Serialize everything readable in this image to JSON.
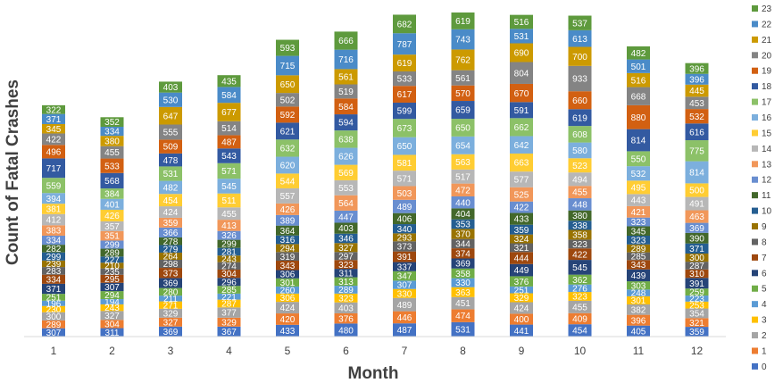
{
  "chart_data": {
    "type": "bar",
    "stacked": true,
    "title": "",
    "xlabel": "Month",
    "ylabel": "Count of Fatal Crashes",
    "categories": [
      "1",
      "2",
      "3",
      "4",
      "5",
      "6",
      "7",
      "8",
      "9",
      "10",
      "11",
      "12"
    ],
    "legend_position": "right",
    "series": [
      {
        "name": "0",
        "color": "#4472C4",
        "values": [
          307,
          311,
          369,
          367,
          433,
          480,
          487,
          531,
          441,
          454,
          405,
          359
        ]
      },
      {
        "name": "1",
        "color": "#ED7D31",
        "values": [
          289,
          304,
          327,
          329,
          420,
          376,
          446,
          474,
          400,
          409,
          396,
          321
        ]
      },
      {
        "name": "2",
        "color": "#A5A5A5",
        "values": [
          300,
          327,
          329,
          377,
          424,
          403,
          489,
          451,
          424,
          455,
          382,
          354
        ]
      },
      {
        "name": "3",
        "color": "#FFC000",
        "values": [
          230,
          243,
          271,
          287,
          306,
          323,
          330,
          363,
          329,
          323,
          301,
          253
        ]
      },
      {
        "name": "4",
        "color": "#5B9BD5",
        "values": [
          196,
          194,
          211,
          221,
          260,
          289,
          307,
          330,
          251,
          276,
          248,
          223
        ]
      },
      {
        "name": "5",
        "color": "#70AD47",
        "values": [
          251,
          294,
          280,
          285,
          301,
          313,
          347,
          358,
          376,
          362,
          303,
          259
        ]
      },
      {
        "name": "6",
        "color": "#264478",
        "values": [
          371,
          307,
          369,
          296,
          306,
          311,
          337,
          369,
          449,
          545,
          439,
          391
        ]
      },
      {
        "name": "7",
        "color": "#9E480E",
        "values": [
          334,
          295,
          373,
          304,
          343,
          323,
          391,
          374,
          444,
          422,
          343,
          310
        ]
      },
      {
        "name": "8",
        "color": "#636363",
        "values": [
          283,
          235,
          298,
          274,
          319,
          297,
          373,
          344,
          321,
          323,
          285,
          287
        ]
      },
      {
        "name": "9",
        "color": "#997300",
        "values": [
          239,
          210,
          264,
          243,
          294,
          327,
          293,
          370,
          324,
          358,
          289,
          300
        ]
      },
      {
        "name": "10",
        "color": "#255E91",
        "values": [
          299,
          227,
          279,
          281,
          316,
          346,
          340,
          353,
          359,
          338,
          323,
          371
        ]
      },
      {
        "name": "11",
        "color": "#43682B",
        "values": [
          282,
          289,
          278,
          299,
          364,
          403,
          406,
          404,
          433,
          380,
          345,
          390
        ]
      },
      {
        "name": "12",
        "color": "#698ED0",
        "values": [
          334,
          299,
          366,
          326,
          389,
          447,
          489,
          440,
          422,
          448,
          323,
          369
        ]
      },
      {
        "name": "13",
        "color": "#F1975A",
        "values": [
          383,
          351,
          359,
          413,
          426,
          564,
          503,
          472,
          525,
          455,
          421,
          463
        ]
      },
      {
        "name": "14",
        "color": "#B7B7B7",
        "values": [
          412,
          357,
          424,
          455,
          557,
          553,
          571,
          517,
          577,
          494,
          443,
          491
        ]
      },
      {
        "name": "15",
        "color": "#FFCD33",
        "values": [
          381,
          426,
          454,
          511,
          544,
          569,
          581,
          563,
          663,
          523,
          495,
          500
        ]
      },
      {
        "name": "16",
        "color": "#7CAFDD",
        "values": [
          394,
          401,
          482,
          545,
          620,
          626,
          650,
          654,
          642,
          580,
          532,
          814
        ]
      },
      {
        "name": "17",
        "color": "#8CC168",
        "values": [
          559,
          384,
          531,
          571,
          632,
          638,
          673,
          650,
          662,
          608,
          550,
          775
        ]
      },
      {
        "name": "18",
        "color": "#335AA1",
        "values": [
          717,
          568,
          478,
          543,
          621,
          594,
          599,
          659,
          591,
          619,
          814,
          616
        ]
      },
      {
        "name": "19",
        "color": "#D26012",
        "values": [
          496,
          533,
          509,
          487,
          592,
          584,
          617,
          570,
          670,
          660,
          880,
          532
        ]
      },
      {
        "name": "20",
        "color": "#848484",
        "values": [
          422,
          455,
          555,
          514,
          502,
          519,
          533,
          561,
          804,
          933,
          668,
          453
        ]
      },
      {
        "name": "21",
        "color": "#CC9A00",
        "values": [
          345,
          380,
          647,
          677,
          650,
          561,
          619,
          762,
          690,
          700,
          516,
          445
        ]
      },
      {
        "name": "22",
        "color": "#4A8BC8",
        "values": [
          371,
          334,
          530,
          584,
          715,
          716,
          787,
          743,
          531,
          613,
          501,
          396
        ]
      },
      {
        "name": "23",
        "color": "#5E9A3D",
        "values": [
          322,
          352,
          403,
          435,
          593,
          666,
          682,
          619,
          516,
          537,
          482,
          396
        ]
      }
    ]
  }
}
